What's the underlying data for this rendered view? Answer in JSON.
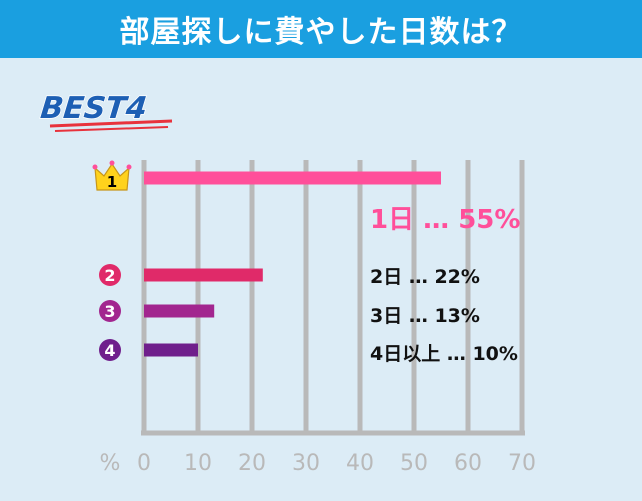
{
  "title": "部屋探しに費やした日数は？",
  "badge": "BEST4",
  "colors": {
    "header": "#1a9fe0",
    "background": "#dcecf6",
    "axis": "#b9b9b9",
    "rank1": "#ff4f9a",
    "rank2": "#e02a69",
    "rank3": "#a2268f",
    "rank4": "#6f1f8c",
    "badge_text": "#1d5fb4",
    "badge_underline": "#e8323c"
  },
  "rank_icons": [
    "crown-1",
    "circle-2",
    "circle-3",
    "circle-4"
  ],
  "chart_data": {
    "type": "bar",
    "orientation": "horizontal",
    "categories": [
      "1日",
      "2日",
      "3日",
      "4日以上"
    ],
    "values": [
      55,
      22,
      13,
      10
    ],
    "rank_labels": [
      "1",
      "2",
      "3",
      "4"
    ],
    "data_labels": [
      "1日 … 55%",
      "2日 … 22%",
      "3日 … 13%",
      "4日以上 … 10%"
    ],
    "xlabel": "%",
    "xticks": [
      "0",
      "10",
      "20",
      "30",
      "40",
      "50",
      "60",
      "70"
    ],
    "xlim": [
      0,
      70
    ],
    "grid": true,
    "legend": "none"
  }
}
